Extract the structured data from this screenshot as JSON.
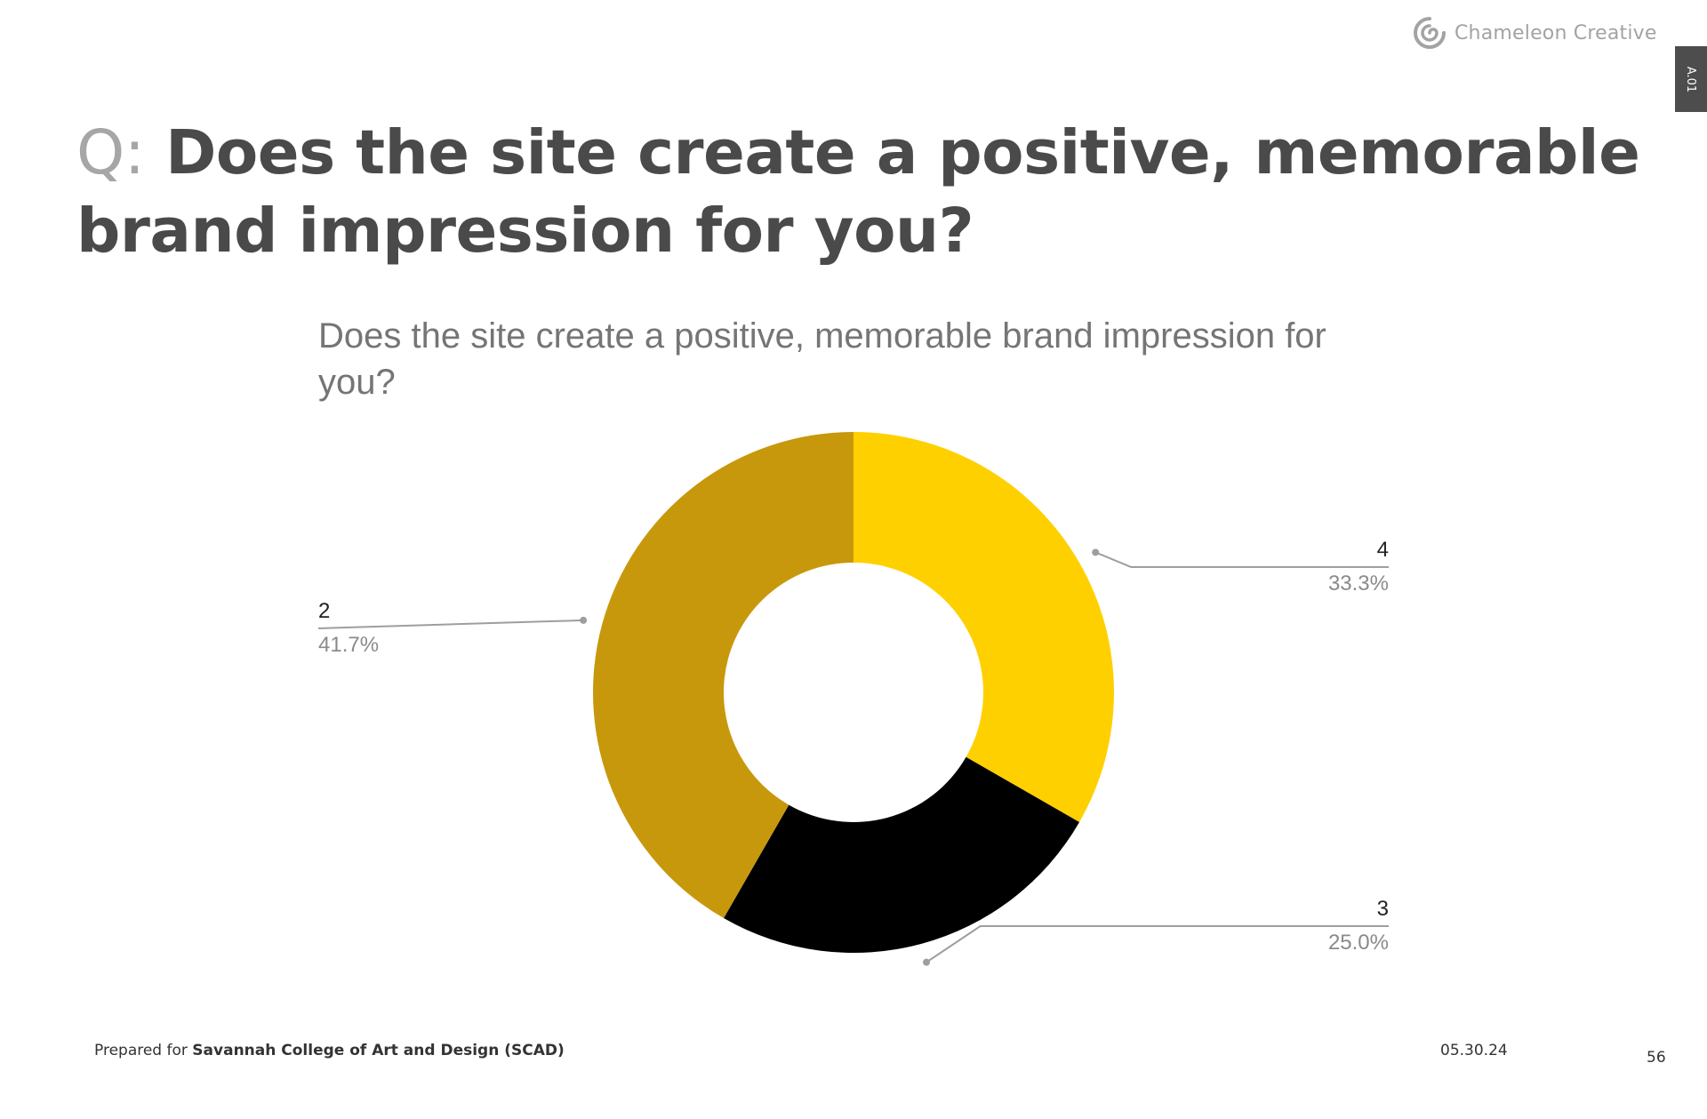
{
  "header": {
    "logo_text": "Chameleon Creative",
    "side_tab": "A.01"
  },
  "question": {
    "prefix": "Q:",
    "text": "Does the site create a positive, memorable brand impression for you?"
  },
  "chart_data": {
    "type": "pie",
    "style": "donut",
    "title": "Does the site create a positive, memorable brand impression for you?",
    "slices": [
      {
        "label": "4",
        "value": 33.3,
        "value_label": "33.3%",
        "color": "#FFD000"
      },
      {
        "label": "3",
        "value": 25.0,
        "value_label": "25.0%",
        "color": "#000000"
      },
      {
        "label": "2",
        "value": 41.7,
        "value_label": "41.7%",
        "color": "#C8980C"
      }
    ],
    "start_angle_deg": 0,
    "direction": "clockwise",
    "legend": "none",
    "labels_position": "outside-with-leader-lines"
  },
  "footer": {
    "prepared_for_label": "Prepared for",
    "client": "Savannah College of Art and Design (SCAD)",
    "date": "05.30.24",
    "page_number": "56"
  },
  "colors": {
    "heading": "#4a4a4a",
    "question_prefix": "#a6a6a6",
    "chart_title": "#757575",
    "leader_line": "#9e9e9e",
    "percent_label": "#8a8a8a",
    "tab_bg": "#4d4d4d"
  }
}
